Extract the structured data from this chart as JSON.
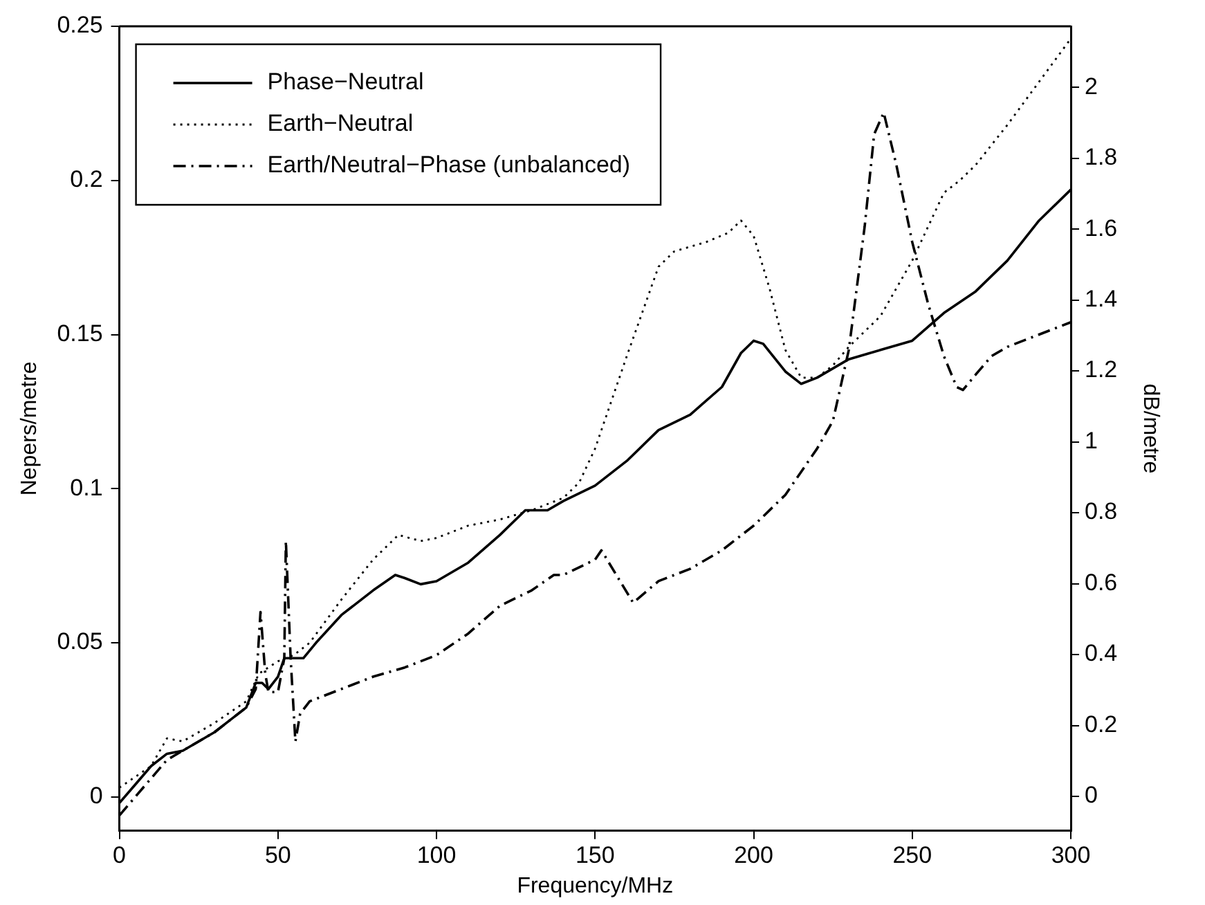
{
  "chart_data": {
    "type": "line",
    "xlabel": "Frequency/MHz",
    "ylabel": "Nepers/metre",
    "y2label": "dB/metre",
    "xlim": [
      0,
      300
    ],
    "xticks": [
      0,
      50,
      100,
      150,
      200,
      250,
      300
    ],
    "ylim": [
      -0.011,
      0.25
    ],
    "yticks": [
      0,
      0.05,
      0.1,
      0.15,
      0.2,
      0.25
    ],
    "y2lim": [
      -0.097,
      2.172
    ],
    "y2ticks": [
      0,
      0.2,
      0.4,
      0.6,
      0.8,
      1,
      1.2,
      1.4,
      1.6,
      1.8,
      2
    ],
    "grid": false,
    "legend": "top left",
    "marker": "none",
    "series": [
      {
        "name": "Phase−Neutral",
        "color": "#000000",
        "line_style": "solid",
        "x": [
          0,
          5,
          10,
          15,
          20,
          30,
          35,
          40,
          43,
          45,
          47,
          50,
          52,
          58,
          62,
          70,
          80,
          87,
          90,
          95,
          100,
          110,
          120,
          128,
          135,
          140,
          150,
          160,
          170,
          180,
          190,
          196,
          200,
          203,
          210,
          215,
          220,
          230,
          240,
          250,
          260,
          270,
          280,
          290,
          300
        ],
        "values": [
          -0.002,
          0.004,
          0.01,
          0.014,
          0.015,
          0.021,
          0.025,
          0.029,
          0.037,
          0.037,
          0.035,
          0.039,
          0.045,
          0.045,
          0.05,
          0.059,
          0.067,
          0.072,
          0.071,
          0.069,
          0.07,
          0.076,
          0.085,
          0.093,
          0.093,
          0.096,
          0.101,
          0.109,
          0.119,
          0.124,
          0.133,
          0.144,
          0.148,
          0.147,
          0.138,
          0.134,
          0.136,
          0.142,
          0.145,
          0.148,
          0.157,
          0.164,
          0.174,
          0.187,
          0.197
        ]
      },
      {
        "name": "Earth−Neutral",
        "color": "#000000",
        "line_style": "dotted",
        "x": [
          0,
          10,
          15,
          20,
          30,
          40,
          44,
          50,
          55,
          60,
          70,
          80,
          88,
          95,
          100,
          110,
          120,
          130,
          140,
          145,
          150,
          160,
          170,
          175,
          185,
          192,
          196,
          200,
          205,
          210,
          215,
          220,
          225,
          230,
          240,
          250,
          260,
          265,
          270,
          280,
          290,
          300
        ],
        "values": [
          0.003,
          0.01,
          0.019,
          0.018,
          0.024,
          0.031,
          0.04,
          0.044,
          0.046,
          0.05,
          0.064,
          0.077,
          0.085,
          0.083,
          0.084,
          0.088,
          0.09,
          0.093,
          0.097,
          0.102,
          0.113,
          0.143,
          0.172,
          0.177,
          0.18,
          0.183,
          0.187,
          0.182,
          0.165,
          0.145,
          0.136,
          0.136,
          0.14,
          0.146,
          0.156,
          0.174,
          0.196,
          0.2,
          0.205,
          0.218,
          0.232,
          0.246
        ]
      },
      {
        "name": "Earth/Neutral−Phase (unbalanced)",
        "color": "#000000",
        "line_style": "dashdot",
        "x": [
          0,
          5,
          10,
          15,
          20,
          30,
          40,
          43,
          44.5,
          46,
          47,
          50,
          52,
          52.5,
          54,
          55.5,
          57,
          60,
          70,
          80,
          90,
          100,
          110,
          120,
          130,
          137,
          140,
          150,
          152,
          162,
          170,
          180,
          190,
          200,
          210,
          220,
          225,
          230,
          235,
          238,
          241,
          245,
          250,
          255,
          260,
          264,
          266,
          270,
          275,
          280,
          290,
          300
        ],
        "values": [
          -0.006,
          0,
          0.006,
          0.012,
          0.015,
          0.021,
          0.029,
          0.035,
          0.06,
          0.04,
          0.034,
          0.034,
          0.045,
          0.083,
          0.045,
          0.018,
          0.027,
          0.031,
          0.035,
          0.039,
          0.042,
          0.046,
          0.053,
          0.062,
          0.067,
          0.072,
          0.072,
          0.077,
          0.08,
          0.063,
          0.07,
          0.074,
          0.08,
          0.088,
          0.098,
          0.113,
          0.122,
          0.145,
          0.185,
          0.215,
          0.222,
          0.205,
          0.18,
          0.16,
          0.143,
          0.133,
          0.132,
          0.137,
          0.143,
          0.146,
          0.15,
          0.154
        ]
      }
    ]
  }
}
